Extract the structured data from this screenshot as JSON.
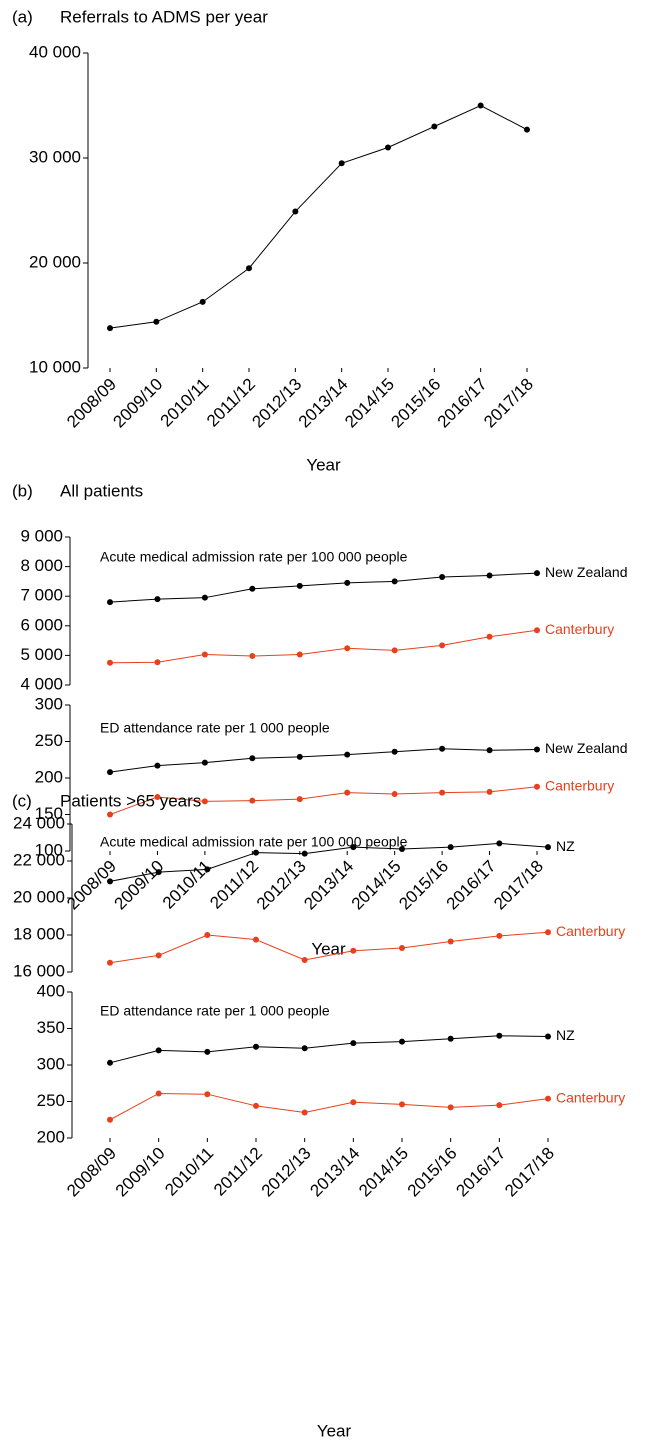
{
  "chart_data": [
    {
      "type": "line",
      "panel": "(a)",
      "title": "Referrals to ADMS per year",
      "categories": [
        "2008/09",
        "2009/10",
        "2010/11",
        "2011/12",
        "2012/13",
        "2013/14",
        "2014/15",
        "2015/16",
        "2016/17",
        "2017/18"
      ],
      "series": [
        {
          "color": "#000000",
          "values": [
            13800,
            14400,
            16300,
            19500,
            24900,
            29500,
            31000,
            33000,
            35000,
            32700
          ]
        }
      ],
      "ylim": [
        10000,
        40000
      ],
      "yticks": [
        {
          "value": 10000,
          "label": "10 000"
        },
        {
          "value": 20000,
          "label": "20 000"
        },
        {
          "value": 30000,
          "label": "30 000"
        },
        {
          "value": 40000,
          "label": "40 000"
        }
      ],
      "xlabel": "Year"
    },
    {
      "type": "line",
      "panel": "(b)",
      "title": "All patients",
      "subtitle": "Acute medical admission rate per 100 000 people",
      "series": [
        {
          "name": "New Zealand",
          "color": "#000000",
          "values": [
            6800,
            6900,
            6950,
            7250,
            7350,
            7450,
            7500,
            7650,
            7700,
            7780
          ]
        },
        {
          "name": "Canterbury",
          "color": "#e8401c",
          "values": [
            4750,
            4770,
            5030,
            4980,
            5030,
            5240,
            5170,
            5340,
            5630,
            5850
          ]
        }
      ],
      "ylim": [
        4000,
        9000
      ],
      "yticks": [
        {
          "value": 4000,
          "label": "4 000"
        },
        {
          "value": 5000,
          "label": "5 000"
        },
        {
          "value": 6000,
          "label": "6 000"
        },
        {
          "value": 7000,
          "label": "7 000"
        },
        {
          "value": 8000,
          "label": "8 000"
        },
        {
          "value": 9000,
          "label": "9 000"
        }
      ]
    },
    {
      "type": "line",
      "subtitle": "ED attendance rate per 1 000 people",
      "categories": [
        "2008/09",
        "2009/10",
        "2010/11",
        "2011/12",
        "2012/13",
        "2013/14",
        "2014/15",
        "2015/16",
        "2016/17",
        "2017/18"
      ],
      "series": [
        {
          "name": "New Zealand",
          "color": "#000000",
          "values": [
            208,
            217,
            221,
            227,
            229,
            232,
            236,
            240,
            238,
            239
          ]
        },
        {
          "name": "Canterbury",
          "color": "#e8401c",
          "values": [
            150,
            174,
            168,
            169,
            171,
            180,
            178,
            180,
            181,
            188
          ]
        }
      ],
      "ylim": [
        100,
        300
      ],
      "yticks": [
        100,
        150,
        200,
        250,
        300
      ],
      "xlabel": "Year"
    },
    {
      "type": "line",
      "panel": "(c)",
      "title": "Patients >65 years",
      "subtitle": "Acute medical admission rate per 100 000 people",
      "series": [
        {
          "name": "NZ",
          "color": "#000000",
          "values": [
            20900,
            21400,
            21550,
            22450,
            22400,
            22750,
            22650,
            22750,
            22950,
            22750
          ]
        },
        {
          "name": "Canterbury",
          "color": "#e8401c",
          "values": [
            16500,
            16900,
            18000,
            17750,
            16650,
            17150,
            17300,
            17650,
            17950,
            18150
          ]
        }
      ],
      "ylim": [
        16000,
        24000
      ],
      "yticks": [
        {
          "value": 16000,
          "label": "16 000"
        },
        {
          "value": 18000,
          "label": "18 000"
        },
        {
          "value": 20000,
          "label": "20 000"
        },
        {
          "value": 22000,
          "label": "22 000"
        },
        {
          "value": 24000,
          "label": "24 000"
        }
      ]
    },
    {
      "type": "line",
      "subtitle": "ED attendance rate per 1 000 people",
      "categories": [
        "2008/09",
        "2009/10",
        "2010/11",
        "2011/12",
        "2012/13",
        "2013/14",
        "2014/15",
        "2015/16",
        "2016/17",
        "2017/18"
      ],
      "series": [
        {
          "name": "NZ",
          "color": "#000000",
          "values": [
            303,
            320,
            318,
            325,
            323,
            330,
            332,
            336,
            340,
            339
          ]
        },
        {
          "name": "Canterbury",
          "color": "#e8401c",
          "values": [
            225,
            261,
            260,
            244,
            235,
            249,
            246,
            242,
            245,
            254
          ]
        }
      ],
      "ylim": [
        200,
        400
      ],
      "yticks": [
        200,
        250,
        300,
        350,
        400
      ],
      "xlabel": "Year"
    }
  ]
}
